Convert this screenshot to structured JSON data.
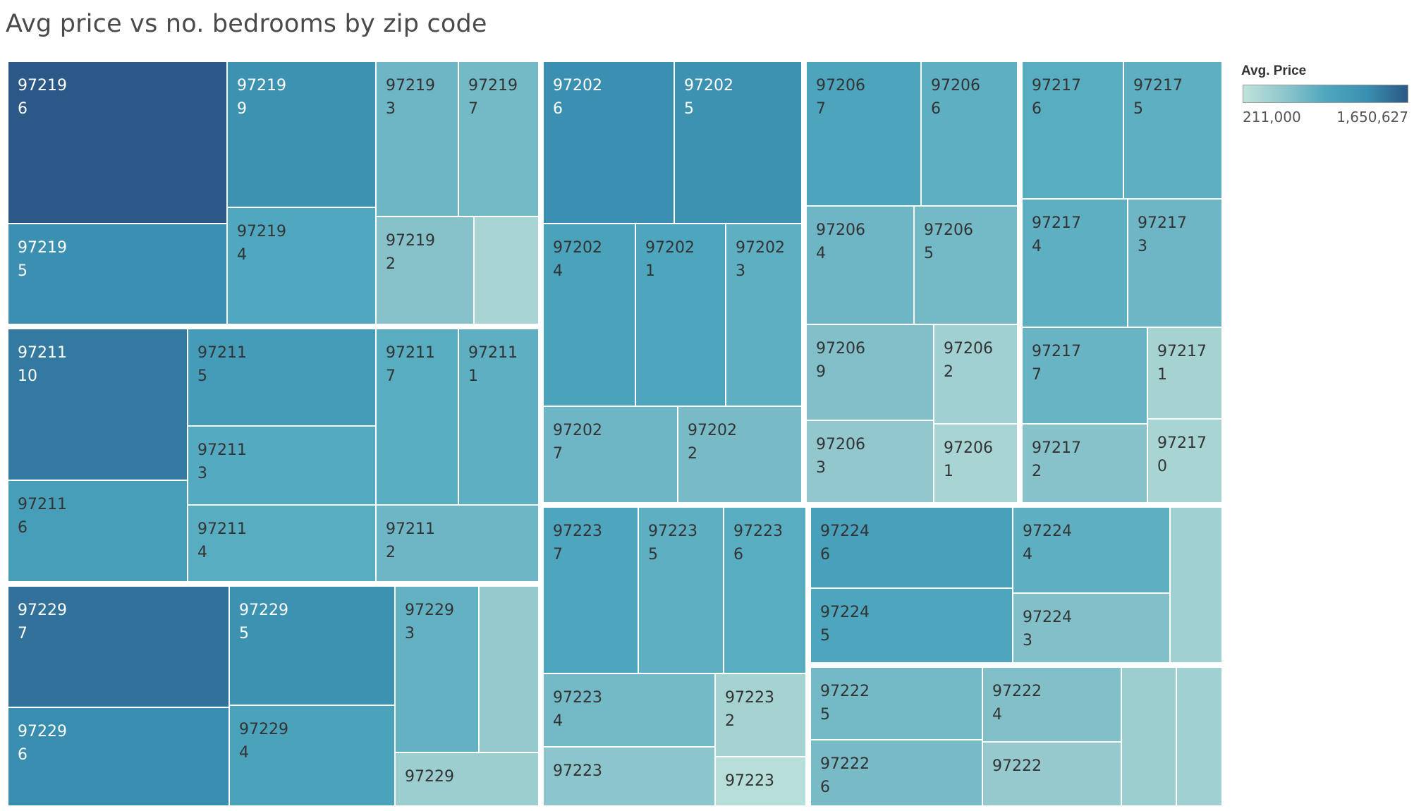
{
  "title": "Avg price vs no. bedrooms by zip code",
  "legend": {
    "title": "Avg. Price",
    "min_label": "211,000",
    "max_label": "1,650,627",
    "colors": [
      "#bfe3da",
      "#8fc6cc",
      "#4fa8bf",
      "#3a8fb0",
      "#2b5886"
    ]
  },
  "chart_data": {
    "type": "treemap",
    "title": "Avg price vs no. bedrooms by zip code",
    "size_measure": "number of listings (relative)",
    "color_measure": "Avg. Price",
    "color_range": [
      211000,
      1650627
    ],
    "groups": [
      {
        "zip": "97219",
        "cells": [
          {
            "label": [
              "97219",
              "6"
            ],
            "shade": 1.0
          },
          {
            "label": [
              "97219",
              "9"
            ],
            "shade": 0.72
          },
          {
            "label": [
              "97219",
              "3"
            ],
            "shade": 0.38
          },
          {
            "label": [
              "97219",
              "7"
            ],
            "shade": 0.36
          },
          {
            "label": [
              "97219",
              "5"
            ],
            "shade": 0.74
          },
          {
            "label": [
              "97219",
              "4"
            ],
            "shade": 0.5
          },
          {
            "label": [
              "97219",
              "2"
            ],
            "shade": 0.28
          },
          {
            "label": [],
            "shade": 0.12
          }
        ]
      },
      {
        "zip": "97211",
        "cells": [
          {
            "label": [
              "97211",
              "10"
            ],
            "shade": 0.85
          },
          {
            "label": [
              "97211",
              "5"
            ],
            "shade": 0.62
          },
          {
            "label": [
              "97211",
              "7"
            ],
            "shade": 0.46
          },
          {
            "label": [
              "97211",
              "1"
            ],
            "shade": 0.44
          },
          {
            "label": [
              "97211",
              "3"
            ],
            "shade": 0.48
          },
          {
            "label": [
              "97211",
              "6"
            ],
            "shade": 0.6
          },
          {
            "label": [
              "97211",
              "4"
            ],
            "shade": 0.46
          },
          {
            "label": [
              "97211",
              "2"
            ],
            "shade": 0.38
          }
        ]
      },
      {
        "zip": "97229",
        "cells": [
          {
            "label": [
              "97229",
              "7"
            ],
            "shade": 0.88
          },
          {
            "label": [
              "97229",
              "5"
            ],
            "shade": 0.72
          },
          {
            "label": [
              "97229",
              "3"
            ],
            "shade": 0.42
          },
          {
            "label": [],
            "shade": 0.22
          },
          {
            "label": [
              "97229",
              "6"
            ],
            "shade": 0.76
          },
          {
            "label": [
              "97229",
              "4"
            ],
            "shade": 0.56
          },
          {
            "label": [
              "97229"
            ],
            "shade": 0.18
          }
        ]
      },
      {
        "zip": "97202",
        "cells": [
          {
            "label": [
              "97202",
              "6"
            ],
            "shade": 0.74
          },
          {
            "label": [
              "97202",
              "5"
            ],
            "shade": 0.72
          },
          {
            "label": [
              "97202",
              "4"
            ],
            "shade": 0.56
          },
          {
            "label": [
              "97202",
              "1"
            ],
            "shade": 0.52
          },
          {
            "label": [
              "97202",
              "3"
            ],
            "shade": 0.44
          },
          {
            "label": [
              "97202",
              "7"
            ],
            "shade": 0.38
          },
          {
            "label": [
              "97202",
              "2"
            ],
            "shade": 0.34
          }
        ]
      },
      {
        "zip": "97206",
        "cells": [
          {
            "label": [
              "97206",
              "7"
            ],
            "shade": 0.54
          },
          {
            "label": [
              "97206",
              "6"
            ],
            "shade": 0.44
          },
          {
            "label": [
              "97206",
              "4"
            ],
            "shade": 0.38
          },
          {
            "label": [
              "97206",
              "5"
            ],
            "shade": 0.36
          },
          {
            "label": [
              "97206",
              "9"
            ],
            "shade": 0.3
          },
          {
            "label": [
              "97206",
              "2"
            ],
            "shade": 0.16
          },
          {
            "label": [
              "97206",
              "3"
            ],
            "shade": 0.24
          },
          {
            "label": [
              "97206",
              "1"
            ],
            "shade": 0.12
          }
        ]
      },
      {
        "zip": "97217",
        "cells": [
          {
            "label": [
              "97217",
              "6"
            ],
            "shade": 0.46
          },
          {
            "label": [
              "97217",
              "5"
            ],
            "shade": 0.44
          },
          {
            "label": [
              "97217",
              "4"
            ],
            "shade": 0.44
          },
          {
            "label": [
              "97217",
              "3"
            ],
            "shade": 0.38
          },
          {
            "label": [
              "97217",
              "7"
            ],
            "shade": 0.4
          },
          {
            "label": [
              "97217",
              "1"
            ],
            "shade": 0.14
          },
          {
            "label": [
              "97217",
              "2"
            ],
            "shade": 0.28
          },
          {
            "label": [
              "97217",
              "0"
            ],
            "shade": 0.12
          }
        ]
      },
      {
        "zip": "97223",
        "cells": [
          {
            "label": [
              "97223",
              "7"
            ],
            "shade": 0.52
          },
          {
            "label": [
              "97223",
              "5"
            ],
            "shade": 0.44
          },
          {
            "label": [
              "97223",
              "6"
            ],
            "shade": 0.46
          },
          {
            "label": [
              "97223",
              "4"
            ],
            "shade": 0.36
          },
          {
            "label": [
              "97223",
              "2"
            ],
            "shade": 0.14
          },
          {
            "label": [
              "97223"
            ],
            "shade": 0.26
          },
          {
            "label": [
              "97223"
            ],
            "shade": 0.04
          }
        ]
      },
      {
        "zip": "97224",
        "cells": [
          {
            "label": [
              "97224",
              "6"
            ],
            "shade": 0.58
          },
          {
            "label": [
              "97224",
              "4"
            ],
            "shade": 0.44
          },
          {
            "label": [],
            "shade": 0.16
          },
          {
            "label": [
              "97224",
              "5"
            ],
            "shade": 0.52
          },
          {
            "label": [
              "97224",
              "3"
            ],
            "shade": 0.3
          }
        ]
      },
      {
        "zip": "97222",
        "cells": [
          {
            "label": [
              "97222",
              "5"
            ],
            "shade": 0.36
          },
          {
            "label": [
              "97222",
              "4"
            ],
            "shade": 0.3
          },
          {
            "label": [],
            "shade": 0.18
          },
          {
            "label": [],
            "shade": 0.16
          },
          {
            "label": [
              "97222",
              "6"
            ],
            "shade": 0.34
          },
          {
            "label": [
              "97222"
            ],
            "shade": 0.22
          }
        ]
      }
    ]
  }
}
